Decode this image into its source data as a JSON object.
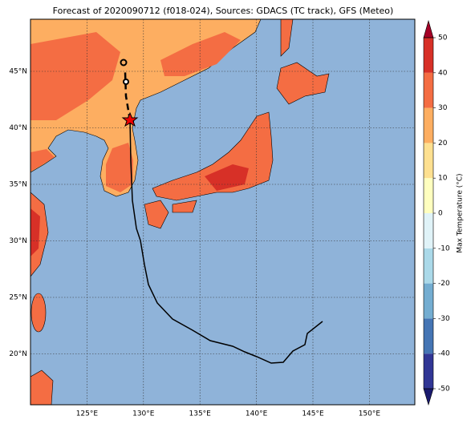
{
  "map": {
    "title": "Forecast of 2020090712 (f018-024), Sources: GDACS (TC track), GFS (Meteo)",
    "lon_ticks": [
      {
        "value": 125,
        "label": "125°E"
      },
      {
        "value": 130,
        "label": "130°E"
      },
      {
        "value": 135,
        "label": "135°E"
      },
      {
        "value": 140,
        "label": "140°E"
      },
      {
        "value": 145,
        "label": "145°E"
      },
      {
        "value": 150,
        "label": "150°E"
      }
    ],
    "lat_ticks": [
      {
        "value": 20,
        "label": "20°N"
      },
      {
        "value": 25,
        "label": "25°N"
      },
      {
        "value": 30,
        "label": "30°N"
      },
      {
        "value": 35,
        "label": "35°N"
      },
      {
        "value": 40,
        "label": "40°N"
      },
      {
        "value": 45,
        "label": "45°N"
      }
    ],
    "colorbar": {
      "label": "Max Temperature (°C)",
      "ticks": [
        -50,
        -40,
        -30,
        -20,
        -10,
        0,
        10,
        20,
        30,
        40,
        50
      ],
      "colors": [
        "#313695",
        "#4575b4",
        "#74add1",
        "#abd9e9",
        "#e0f3f8",
        "#ffffbf",
        "#fee090",
        "#fdae61",
        "#f46d43",
        "#d73027"
      ],
      "under_color": "#1a1a6e",
      "over_color": "#a50026"
    }
  }
}
